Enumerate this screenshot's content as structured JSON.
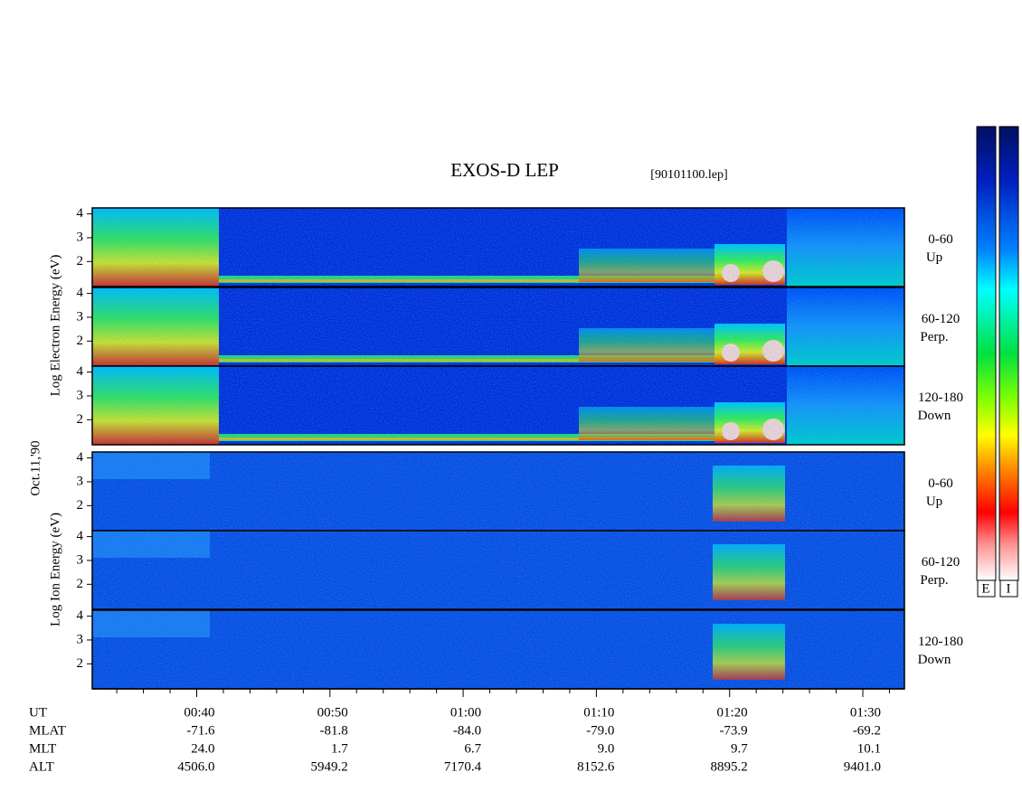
{
  "title": "EXOS-D LEP",
  "file": "[90101100.lep]",
  "date": "Oct.11,'90",
  "electron_axis_label": "Log Electron Energy (eV)",
  "ion_axis_label": "Log Ion Energy (eV)",
  "ylim": [
    0.95,
    4.25
  ],
  "yticks": [
    2,
    3,
    4
  ],
  "panels": [
    {
      "species": "electron",
      "angle": "0-60",
      "direction": "Up"
    },
    {
      "species": "electron",
      "angle": "60-120",
      "direction": "Perp."
    },
    {
      "species": "electron",
      "angle": "120-180",
      "direction": "Down"
    },
    {
      "species": "ion",
      "angle": "0-60",
      "direction": "Up"
    },
    {
      "species": "ion",
      "angle": "60-120",
      "direction": "Perp."
    },
    {
      "species": "ion",
      "angle": "120-180",
      "direction": "Down"
    }
  ],
  "ephemeris": {
    "row_labels": [
      "UT",
      "MLAT",
      "MLT",
      "ALT"
    ],
    "rows": [
      [
        "00:40",
        "00:50",
        "01:00",
        "01:10",
        "01:20",
        "01:30"
      ],
      [
        "-71.6",
        "-81.8",
        "-84.0",
        "-79.0",
        "-73.9",
        "-69.2"
      ],
      [
        "24.0",
        "1.7",
        "6.7",
        "9.0",
        "9.7",
        "10.1"
      ],
      [
        "4506.0",
        "5949.2",
        "7170.4",
        "8152.6",
        "8895.2",
        "9401.0"
      ]
    ]
  },
  "colorbar_labels": [
    "E",
    "I"
  ]
}
